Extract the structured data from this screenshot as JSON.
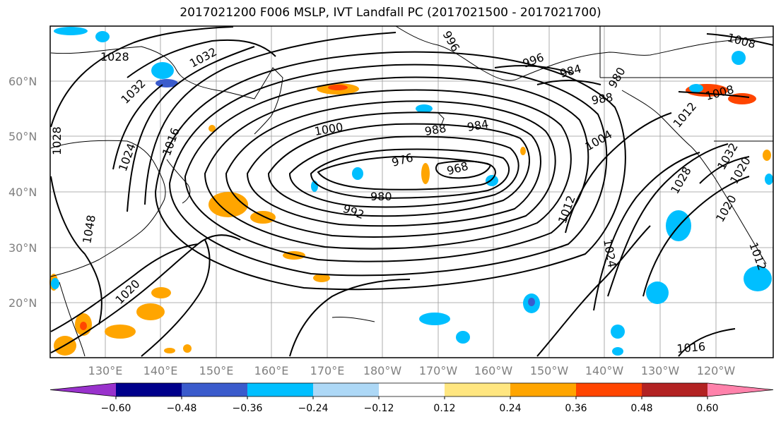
{
  "title": "2017021200 F006 MSLP, IVT Landfall PC (2017021500 - 2017021700)",
  "map": {
    "lat_labels": [
      "60°N",
      "50°N",
      "40°N",
      "30°N",
      "20°N"
    ],
    "lon_labels": [
      "130°E",
      "140°E",
      "150°E",
      "160°E",
      "170°E",
      "180°W",
      "170°W",
      "160°W",
      "150°W",
      "140°W",
      "130°W",
      "120°W"
    ],
    "grid": true
  },
  "contour_labels": [
    "1028",
    "1032",
    "1032",
    "1028",
    "1024",
    "1016",
    "1000",
    "988",
    "984",
    "976",
    "968",
    "980",
    "992",
    "996",
    "984",
    "980",
    "988",
    "1004",
    "1008",
    "1008",
    "1012",
    "1032",
    "1028",
    "1020",
    "1012",
    "1012",
    "1024",
    "1016",
    "1020",
    "1048",
    "1020",
    "996"
  ],
  "colorbar": {
    "tick_labels": [
      "−0.60",
      "−0.48",
      "−0.36",
      "−0.24",
      "−0.12",
      "0.12",
      "0.24",
      "0.36",
      "0.48",
      "0.60"
    ],
    "colors": [
      "#9932cc",
      "#00008b",
      "#3a5bcc",
      "#00bfff",
      "#add8f6",
      "#ffffff",
      "#ffe680",
      "#ffa500",
      "#ff4500",
      "#b22222",
      "#ff82ab"
    ]
  }
}
